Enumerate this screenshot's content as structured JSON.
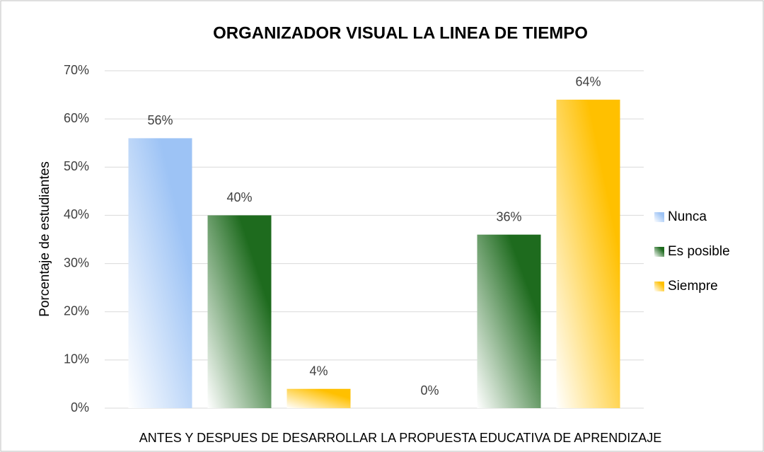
{
  "chart_data": {
    "type": "bar",
    "title": "ORGANIZADOR VISUAL LA LINEA DE TIEMPO",
    "x_label": "ANTES Y DESPUES DE DESARROLLAR LA PROPUESTA EDUCATIVA DE APRENDIZAJE",
    "y_label": "Porcentaje de estudiantes",
    "categories": [
      null,
      null
    ],
    "series": [
      {
        "name": "Nunca",
        "color": "#9dc3f5",
        "values": [
          56,
          0
        ],
        "value_labels": [
          "56%",
          "0%"
        ]
      },
      {
        "name": "Es posible",
        "color": "#1e6b1e",
        "values": [
          40,
          36
        ],
        "value_labels": [
          "40%",
          "36%"
        ]
      },
      {
        "name": "Siempre",
        "color": "#ffc000",
        "values": [
          4,
          64
        ],
        "value_labels": [
          "4%",
          "64%"
        ]
      }
    ],
    "ylim": [
      0,
      70
    ],
    "yticks": [
      {
        "value": 0,
        "label": "0%"
      },
      {
        "value": 10,
        "label": "10%"
      },
      {
        "value": 20,
        "label": "20%"
      },
      {
        "value": 30,
        "label": "30%"
      },
      {
        "value": 40,
        "label": "40%"
      },
      {
        "value": 50,
        "label": "50%"
      },
      {
        "value": 60,
        "label": "60%"
      },
      {
        "value": 70,
        "label": "70%"
      }
    ],
    "grid": true,
    "legend": "right"
  }
}
